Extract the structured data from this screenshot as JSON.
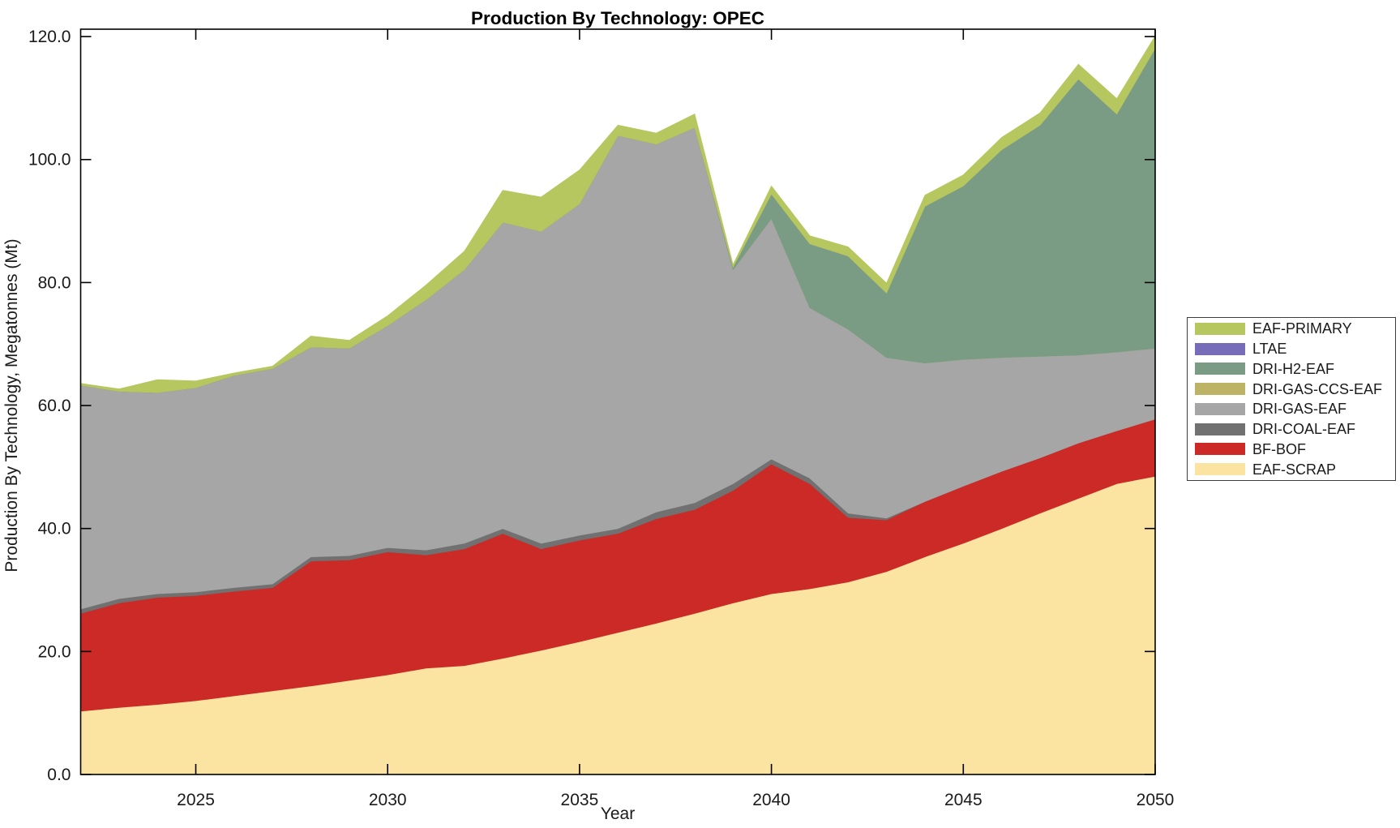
{
  "chart_data": {
    "type": "area",
    "stacked": true,
    "title": "Production By Technology: OPEC",
    "xlabel": "Year",
    "ylabel": "Production By Technology, Megatonnes (Mt)",
    "x": [
      2022,
      2023,
      2024,
      2025,
      2026,
      2027,
      2028,
      2029,
      2030,
      2031,
      2032,
      2033,
      2034,
      2035,
      2036,
      2037,
      2038,
      2039,
      2040,
      2041,
      2042,
      2043,
      2044,
      2045,
      2046,
      2047,
      2048,
      2049,
      2050
    ],
    "xlim": [
      2022,
      2050
    ],
    "ylim": [
      0,
      121.2
    ],
    "x_ticks": [
      2025,
      2030,
      2035,
      2040,
      2045,
      2050
    ],
    "x_tick_labels": [
      "2025",
      "2030",
      "2035",
      "2040",
      "2045",
      "2050"
    ],
    "y_ticks": {
      "values": [
        0,
        20,
        40,
        60,
        80,
        100,
        120
      ],
      "labels": [
        "0.0",
        "20.0",
        "40.0",
        "60.0",
        "80.0",
        "100.0",
        "120.0"
      ]
    },
    "grid": false,
    "legend_position": "outside-right",
    "background_color": "#ffffff",
    "axes_color": "#000000",
    "text_color": "#1a1a1a",
    "series_bottom_to_top": [
      {
        "name": "EAF-SCRAP",
        "color": "#fbe3a2",
        "values": [
          10.3,
          10.9,
          11.4,
          12.0,
          12.8,
          13.6,
          14.4,
          15.3,
          16.2,
          17.3,
          17.7,
          18.9,
          20.2,
          21.6,
          23.1,
          24.6,
          26.2,
          27.9,
          29.4,
          30.2,
          31.3,
          33.0,
          35.4,
          37.6,
          40.0,
          42.5,
          44.9,
          47.3,
          48.5
        ]
      },
      {
        "name": "BF-BOF",
        "color": "#cb2a27",
        "values": [
          15.9,
          17.0,
          17.4,
          17.1,
          17.0,
          16.8,
          20.3,
          19.6,
          20.0,
          18.4,
          19.0,
          20.3,
          16.5,
          16.5,
          16.1,
          17.0,
          16.9,
          18.3,
          21.1,
          17.1,
          10.5,
          8.4,
          9.0,
          9.3,
          9.3,
          9.0,
          9.0,
          8.6,
          9.3
        ]
      },
      {
        "name": "DRI-COAL-EAF",
        "color": "#717171",
        "values": [
          0.7,
          0.7,
          0.6,
          0.6,
          0.6,
          0.6,
          0.7,
          0.7,
          0.7,
          0.8,
          0.9,
          0.8,
          0.9,
          0.8,
          0.8,
          1.1,
          1.1,
          1.1,
          0.8,
          0.9,
          0.7,
          0.3,
          0,
          0,
          0,
          0,
          0,
          0,
          0
        ]
      },
      {
        "name": "DRI-GAS-EAF",
        "color": "#a6a6a6",
        "values": [
          36.4,
          33.7,
          32.7,
          33.2,
          34.5,
          35.0,
          34.1,
          33.7,
          36.1,
          40.7,
          44.5,
          49.8,
          50.7,
          53.9,
          63.9,
          59.8,
          61.0,
          34.8,
          39.1,
          27.7,
          29.9,
          26.1,
          22.5,
          20.6,
          18.5,
          16.5,
          14.3,
          12.8,
          11.5
        ]
      },
      {
        "name": "DRI-GAS-CCS-EAF",
        "color": "#bdb366",
        "values": [
          0,
          0,
          0,
          0,
          0,
          0,
          0,
          0,
          0,
          0,
          0,
          0,
          0,
          0,
          0,
          0,
          0,
          0,
          0,
          0,
          0,
          0,
          0,
          0,
          0,
          0,
          0,
          0,
          0
        ]
      },
      {
        "name": "DRI-H2-EAF",
        "color": "#7b9c84",
        "values": [
          0,
          0,
          0,
          0,
          0,
          0,
          0,
          0,
          0,
          0,
          0,
          0,
          0,
          0,
          0,
          0,
          0,
          0.4,
          4.0,
          10.4,
          11.9,
          10.5,
          25.5,
          28.2,
          33.8,
          37.6,
          44.9,
          38.7,
          48.8
        ]
      },
      {
        "name": "LTAE",
        "color": "#776cb8",
        "values": [
          0,
          0,
          0,
          0,
          0,
          0,
          0,
          0,
          0,
          0,
          0,
          0,
          0,
          0,
          0,
          0,
          0,
          0,
          0,
          0,
          0,
          0,
          0,
          0,
          0,
          0,
          0,
          0,
          0
        ]
      },
      {
        "name": "EAF-PRIMARY",
        "color": "#b5c75e",
        "values": [
          0.3,
          0.4,
          2.1,
          1.1,
          0.4,
          0.4,
          1.8,
          1.3,
          1.6,
          2.4,
          3.0,
          5.2,
          5.6,
          5.5,
          1.7,
          1.8,
          2.2,
          0.4,
          1.3,
          1.3,
          1.5,
          1.6,
          1.8,
          1.8,
          2.0,
          2.0,
          2.4,
          2.5,
          2.0
        ]
      }
    ],
    "legend_top_to_bottom": [
      "EAF-PRIMARY",
      "LTAE",
      "DRI-H2-EAF",
      "DRI-GAS-CCS-EAF",
      "DRI-GAS-EAF",
      "DRI-COAL-EAF",
      "BF-BOF",
      "EAF-SCRAP"
    ]
  }
}
